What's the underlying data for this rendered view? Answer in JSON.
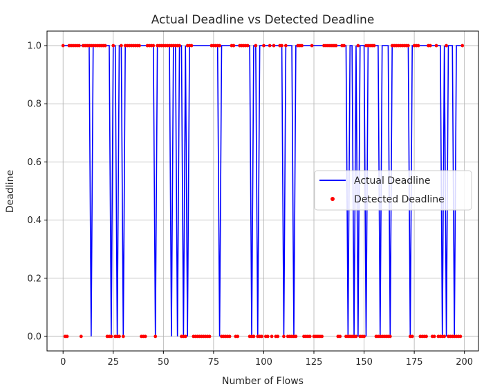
{
  "chart_data": {
    "type": "line",
    "title": "Actual Deadline vs Detected Deadline",
    "xlabel": "Number of Flows",
    "ylabel": "Deadline",
    "xlim": [
      -8,
      207
    ],
    "ylim": [
      -0.05,
      1.05
    ],
    "xticks": [
      0,
      25,
      50,
      75,
      100,
      125,
      150,
      175,
      200
    ],
    "yticks": [
      0.0,
      0.2,
      0.4,
      0.6,
      0.8,
      1.0
    ],
    "xtick_labels": [
      "0",
      "25",
      "50",
      "75",
      "100",
      "125",
      "150",
      "175",
      "200"
    ],
    "ytick_labels": [
      "0.0",
      "0.2",
      "0.4",
      "0.6",
      "0.8",
      "1.0"
    ],
    "grid": true,
    "legend_position": "center-right",
    "x": [
      0,
      1,
      2,
      3,
      4,
      5,
      6,
      7,
      8,
      9,
      10,
      11,
      12,
      13,
      14,
      15,
      16,
      17,
      18,
      19,
      20,
      21,
      22,
      23,
      24,
      25,
      26,
      27,
      28,
      29,
      30,
      31,
      32,
      33,
      34,
      35,
      36,
      37,
      38,
      39,
      40,
      41,
      42,
      43,
      44,
      45,
      46,
      47,
      48,
      49,
      50,
      51,
      52,
      53,
      54,
      55,
      56,
      57,
      58,
      59,
      60,
      61,
      62,
      63,
      64,
      65,
      66,
      67,
      68,
      69,
      70,
      71,
      72,
      73,
      74,
      75,
      76,
      77,
      78,
      79,
      80,
      81,
      82,
      83,
      84,
      85,
      86,
      87,
      88,
      89,
      90,
      91,
      92,
      93,
      94,
      95,
      96,
      97,
      98,
      99,
      100,
      101,
      102,
      103,
      104,
      105,
      106,
      107,
      108,
      109,
      110,
      111,
      112,
      113,
      114,
      115,
      116,
      117,
      118,
      119,
      120,
      121,
      122,
      123,
      124,
      125,
      126,
      127,
      128,
      129,
      130,
      131,
      132,
      133,
      134,
      135,
      136,
      137,
      138,
      139,
      140,
      141,
      142,
      143,
      144,
      145,
      146,
      147,
      148,
      149,
      150,
      151,
      152,
      153,
      154,
      155,
      156,
      157,
      158,
      159,
      160,
      161,
      162,
      163,
      164,
      165,
      166,
      167,
      168,
      169,
      170,
      171,
      172,
      173,
      174,
      175,
      176,
      177,
      178,
      179,
      180,
      181,
      182,
      183,
      184,
      185,
      186,
      187,
      188,
      189,
      190,
      191,
      192,
      193,
      194,
      195,
      196,
      197,
      198,
      199
    ],
    "series": [
      {
        "name": "Actual Deadline",
        "kind": "line",
        "color": "#0000ff",
        "values": [
          1,
          1,
          1,
          1,
          1,
          1,
          1,
          1,
          1,
          1,
          1,
          1,
          1,
          1,
          0,
          1,
          1,
          1,
          1,
          1,
          1,
          1,
          1,
          1,
          0,
          1,
          1,
          0,
          1,
          1,
          0,
          1,
          1,
          1,
          1,
          1,
          1,
          1,
          1,
          1,
          1,
          1,
          1,
          1,
          1,
          1,
          0,
          1,
          1,
          1,
          1,
          1,
          1,
          1,
          0,
          1,
          1,
          0,
          1,
          1,
          0,
          1,
          0,
          1,
          1,
          1,
          1,
          1,
          1,
          1,
          1,
          1,
          1,
          1,
          1,
          1,
          1,
          1,
          0,
          1,
          1,
          1,
          1,
          1,
          1,
          1,
          1,
          1,
          1,
          1,
          1,
          1,
          1,
          1,
          0,
          1,
          1,
          0,
          1,
          1,
          1,
          1,
          1,
          1,
          1,
          1,
          1,
          1,
          1,
          1,
          0,
          1,
          1,
          1,
          1,
          0,
          1,
          1,
          1,
          1,
          1,
          1,
          1,
          1,
          1,
          1,
          1,
          1,
          1,
          1,
          1,
          1,
          1,
          1,
          1,
          1,
          1,
          1,
          1,
          1,
          1,
          1,
          0,
          1,
          1,
          0,
          1,
          0,
          1,
          1,
          1,
          0,
          1,
          1,
          1,
          1,
          1,
          1,
          0,
          1,
          1,
          1,
          1,
          0,
          1,
          1,
          1,
          1,
          1,
          1,
          1,
          1,
          1,
          0,
          1,
          1,
          1,
          1,
          1,
          1,
          1,
          1,
          1,
          1,
          1,
          1,
          1,
          1,
          1,
          0,
          1,
          0,
          1,
          1,
          1,
          0,
          1,
          1,
          1,
          1
        ]
      },
      {
        "name": "Detected Deadline",
        "kind": "scatter",
        "color": "#ff0000",
        "values": [
          1,
          0,
          0,
          1,
          1,
          1,
          1,
          1,
          1,
          0,
          1,
          1,
          1,
          1,
          1,
          1,
          1,
          1,
          1,
          1,
          1,
          1,
          0,
          0,
          0,
          1,
          0,
          0,
          0,
          1,
          0,
          1,
          1,
          1,
          1,
          1,
          1,
          1,
          1,
          0,
          0,
          0,
          1,
          1,
          1,
          1,
          0,
          1,
          1,
          1,
          1,
          1,
          1,
          1,
          1,
          1,
          1,
          1,
          1,
          0,
          0,
          0,
          1,
          1,
          1,
          0,
          0,
          0,
          0,
          0,
          0,
          0,
          0,
          0,
          1,
          1,
          1,
          1,
          1,
          0,
          0,
          0,
          0,
          0,
          1,
          1,
          0,
          0,
          1,
          1,
          1,
          1,
          1,
          0,
          0,
          0,
          1,
          0,
          0,
          0,
          1,
          0,
          0,
          1,
          0,
          1,
          0,
          0,
          1,
          1,
          0,
          1,
          0,
          0,
          0,
          0,
          0,
          1,
          1,
          1,
          0,
          0,
          0,
          0,
          1,
          0,
          0,
          0,
          0,
          0,
          1,
          1,
          1,
          1,
          1,
          1,
          1,
          0,
          0,
          1,
          1,
          0,
          0,
          0,
          0,
          0,
          0,
          1,
          0,
          0,
          0,
          1,
          1,
          1,
          1,
          1,
          0,
          0,
          0,
          0,
          0,
          0,
          0,
          0,
          1,
          1,
          1,
          1,
          1,
          1,
          1,
          1,
          1,
          0,
          0,
          1,
          1,
          1,
          0,
          0,
          0,
          0,
          1,
          1,
          0,
          0,
          1,
          0,
          0,
          0,
          0,
          1,
          0,
          0,
          0,
          0,
          0,
          0,
          0,
          1
        ]
      }
    ]
  }
}
